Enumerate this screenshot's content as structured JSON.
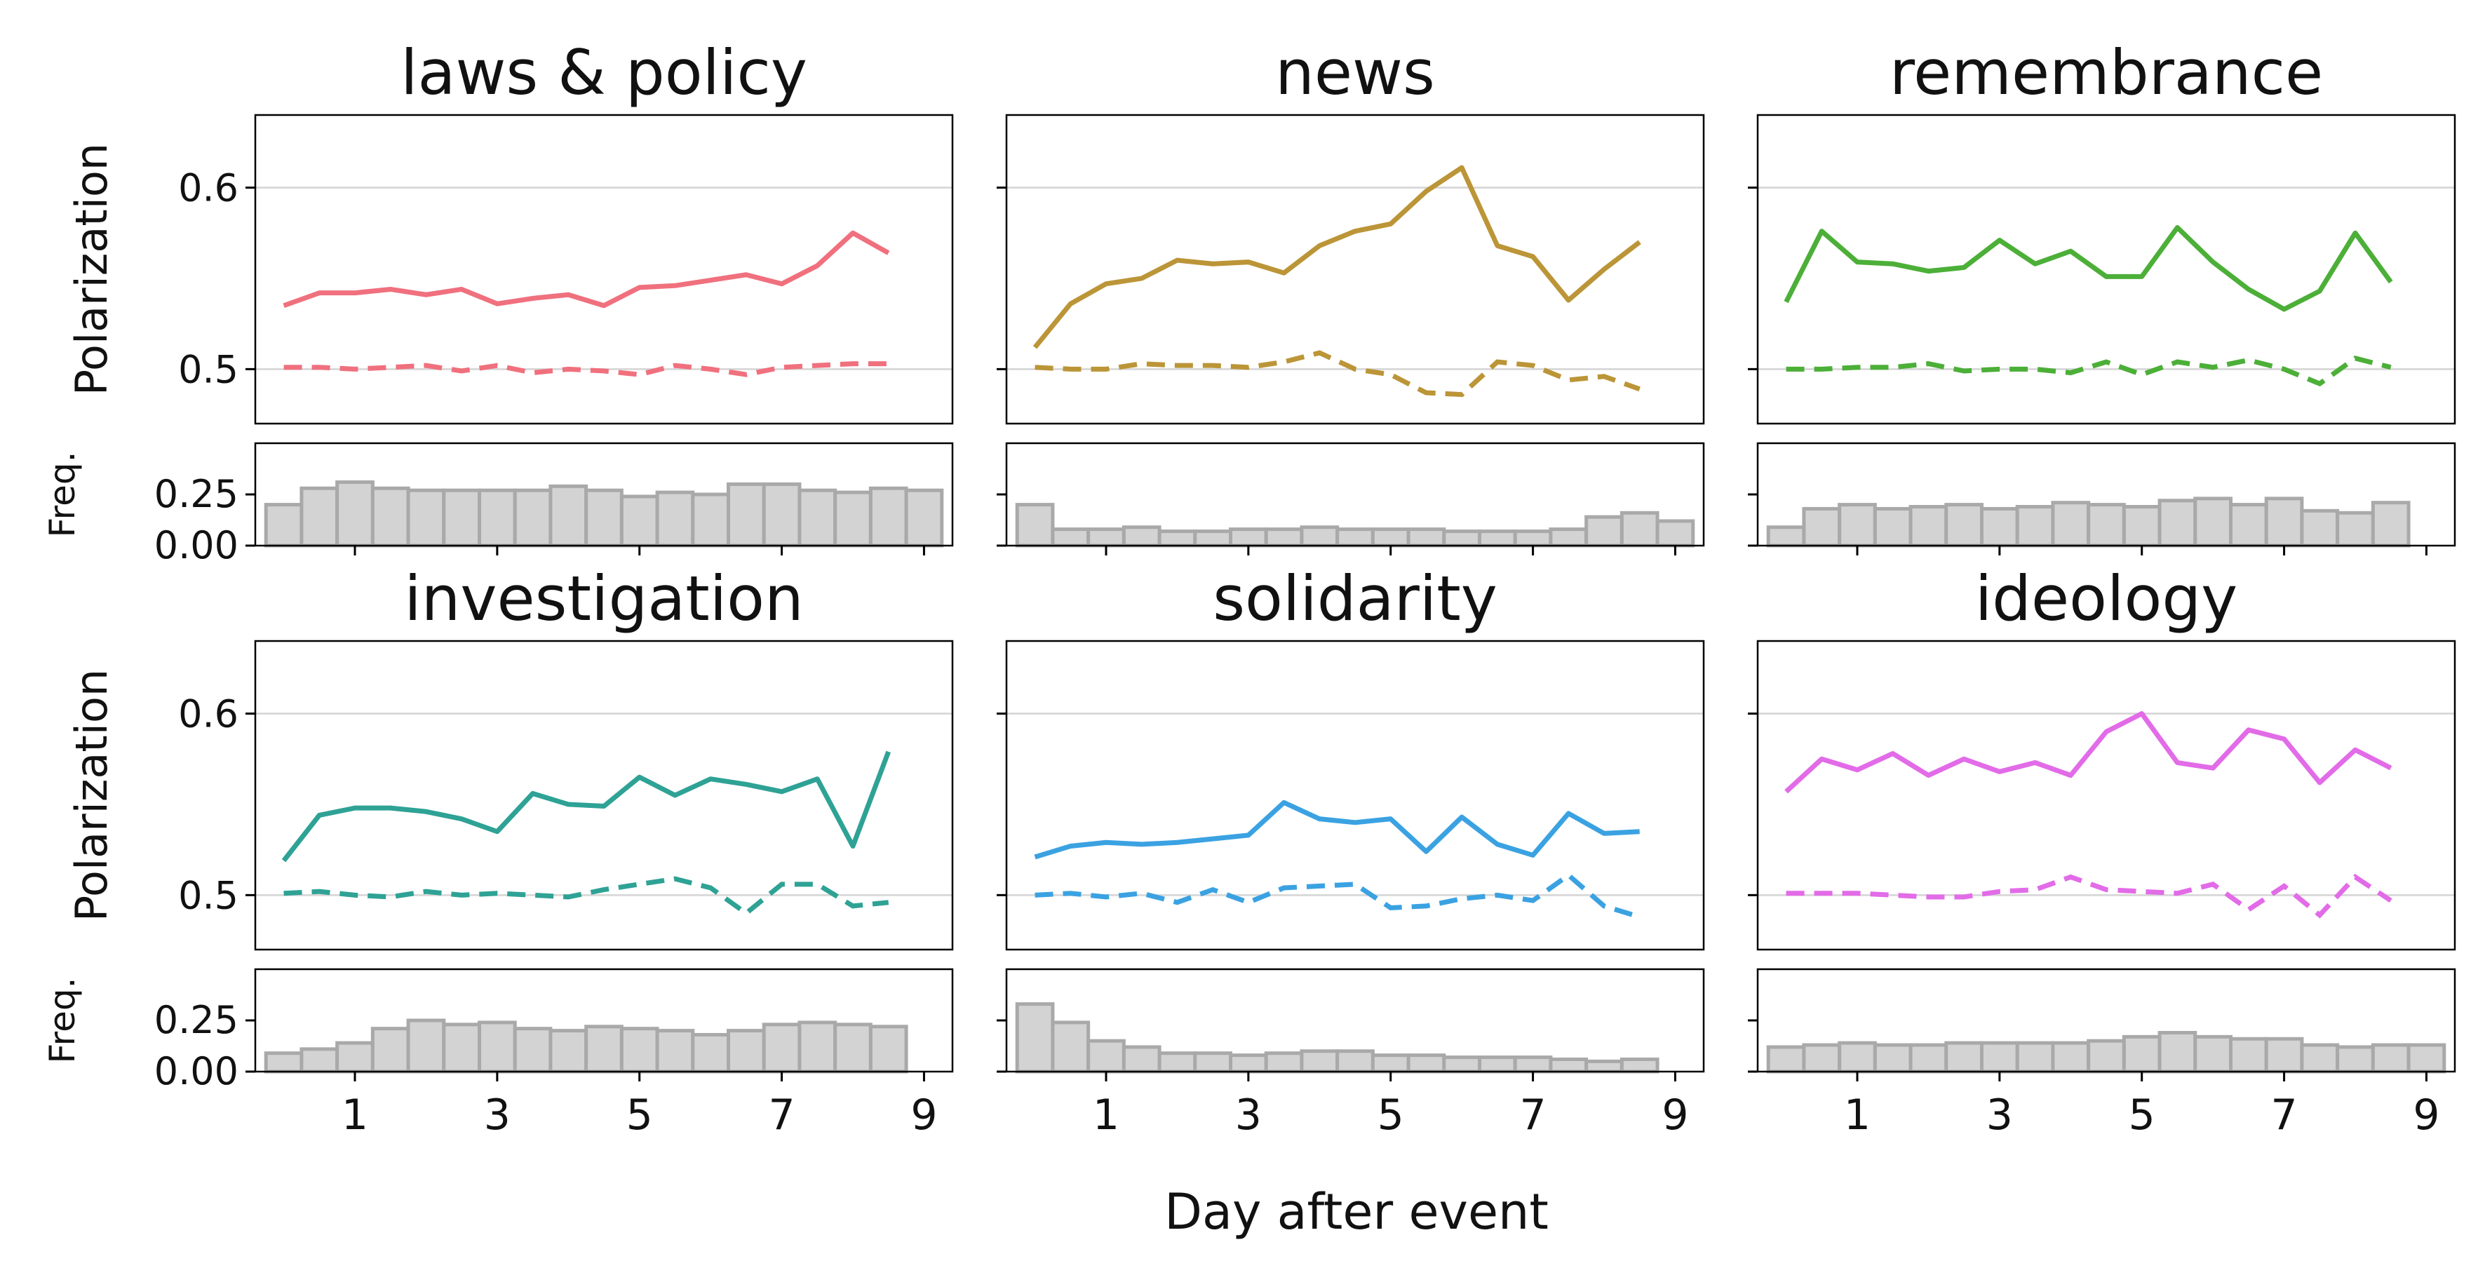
{
  "chart_data": {
    "type": "line",
    "xlabel": "Day after event",
    "ylabel": "Polarization",
    "freq_label": "Freq.",
    "x": [
      0,
      0.5,
      1,
      1.5,
      2,
      2.5,
      3,
      3.5,
      4,
      4.5,
      5,
      5.5,
      6,
      6.5,
      7,
      7.5,
      8,
      8.5,
      9
    ],
    "xticks": [
      1,
      3,
      5,
      7,
      9
    ],
    "ylim": [
      0.47,
      0.64
    ],
    "yticks": [
      0.5,
      0.6
    ],
    "freq_ylim": [
      0,
      0.5
    ],
    "freq_yticks": [
      0.0,
      0.25
    ],
    "panels": [
      {
        "title": "laws & policy",
        "color": "#f0707e",
        "observed": [
          0.535,
          0.542,
          0.542,
          0.544,
          0.541,
          0.544,
          0.536,
          0.539,
          0.541,
          0.535,
          0.545,
          0.546,
          0.549,
          0.552,
          0.547,
          0.557,
          0.575,
          0.564
        ],
        "baseline": [
          0.501,
          0.501,
          0.5,
          0.501,
          0.502,
          0.499,
          0.502,
          0.498,
          0.5,
          0.499,
          0.497,
          0.502,
          0.5,
          0.497,
          0.501,
          0.502,
          0.503,
          0.503
        ],
        "freq": [
          0.2,
          0.28,
          0.31,
          0.28,
          0.27,
          0.27,
          0.27,
          0.27,
          0.29,
          0.27,
          0.24,
          0.26,
          0.25,
          0.3,
          0.3,
          0.27,
          0.26,
          0.28,
          0.27
        ]
      },
      {
        "title": "news",
        "color": "#bb9537",
        "observed": [
          0.512,
          0.536,
          0.547,
          0.55,
          0.56,
          0.558,
          0.559,
          0.553,
          0.568,
          0.576,
          0.58,
          0.598,
          0.611,
          0.568,
          0.562,
          0.538,
          0.555,
          0.57
        ],
        "baseline": [
          0.501,
          0.5,
          0.5,
          0.503,
          0.502,
          0.502,
          0.501,
          0.504,
          0.509,
          0.5,
          0.497,
          0.487,
          0.486,
          0.504,
          0.502,
          0.494,
          0.496,
          0.489
        ],
        "freq": [
          0.2,
          0.08,
          0.08,
          0.09,
          0.07,
          0.07,
          0.08,
          0.08,
          0.09,
          0.08,
          0.08,
          0.08,
          0.07,
          0.07,
          0.07,
          0.08,
          0.14,
          0.16,
          0.12
        ]
      },
      {
        "title": "remembrance",
        "color": "#4caf38",
        "observed": [
          0.537,
          0.576,
          0.559,
          0.558,
          0.554,
          0.556,
          0.571,
          0.558,
          0.565,
          0.551,
          0.551,
          0.578,
          0.559,
          0.544,
          0.533,
          0.543,
          0.575,
          0.548
        ],
        "baseline": [
          0.5,
          0.5,
          0.501,
          0.501,
          0.503,
          0.499,
          0.5,
          0.5,
          0.498,
          0.504,
          0.497,
          0.504,
          0.501,
          0.505,
          0.5,
          0.492,
          0.506,
          0.501
        ],
        "freq": [
          0.09,
          0.18,
          0.2,
          0.18,
          0.19,
          0.2,
          0.18,
          0.19,
          0.21,
          0.2,
          0.19,
          0.22,
          0.23,
          0.2,
          0.23,
          0.17,
          0.16,
          0.21,
          0.0
        ]
      },
      {
        "title": "investigation",
        "color": "#2ea295",
        "observed": [
          0.519,
          0.544,
          0.548,
          0.548,
          0.546,
          0.542,
          0.535,
          0.556,
          0.55,
          0.549,
          0.565,
          0.555,
          0.564,
          0.561,
          0.557,
          0.564,
          0.527,
          0.579
        ],
        "baseline": [
          0.501,
          0.502,
          0.5,
          0.499,
          0.502,
          0.5,
          0.501,
          0.5,
          0.499,
          0.503,
          0.506,
          0.509,
          0.504,
          0.49,
          0.506,
          0.506,
          0.494,
          0.496
        ],
        "freq": [
          0.09,
          0.11,
          0.14,
          0.21,
          0.25,
          0.23,
          0.24,
          0.21,
          0.2,
          0.22,
          0.21,
          0.2,
          0.18,
          0.2,
          0.23,
          0.24,
          0.23,
          0.22,
          0.0
        ]
      },
      {
        "title": "solidarity",
        "color": "#3ba2e2",
        "observed": [
          0.521,
          0.527,
          0.529,
          0.528,
          0.529,
          0.531,
          0.533,
          0.551,
          0.542,
          0.54,
          0.542,
          0.524,
          0.543,
          0.528,
          0.522,
          0.545,
          0.534,
          0.535
        ],
        "baseline": [
          0.5,
          0.501,
          0.499,
          0.501,
          0.496,
          0.503,
          0.496,
          0.504,
          0.505,
          0.506,
          0.493,
          0.494,
          0.498,
          0.5,
          0.497,
          0.511,
          0.494,
          0.488
        ],
        "freq": [
          0.33,
          0.24,
          0.15,
          0.12,
          0.09,
          0.09,
          0.08,
          0.09,
          0.1,
          0.1,
          0.08,
          0.08,
          0.07,
          0.07,
          0.07,
          0.06,
          0.05,
          0.06,
          0.0
        ]
      },
      {
        "title": "ideology",
        "color": "#e26be8",
        "observed": [
          0.557,
          0.575,
          0.569,
          0.578,
          0.566,
          0.575,
          0.568,
          0.573,
          0.566,
          0.59,
          0.6,
          0.573,
          0.57,
          0.591,
          0.586,
          0.562,
          0.58,
          0.57
        ],
        "baseline": [
          0.501,
          0.501,
          0.501,
          0.5,
          0.499,
          0.499,
          0.502,
          0.503,
          0.51,
          0.503,
          0.502,
          0.501,
          0.506,
          0.492,
          0.505,
          0.489,
          0.51,
          0.497
        ],
        "freq": [
          0.12,
          0.13,
          0.14,
          0.13,
          0.13,
          0.14,
          0.14,
          0.14,
          0.14,
          0.15,
          0.17,
          0.19,
          0.17,
          0.16,
          0.16,
          0.13,
          0.12,
          0.13,
          0.13
        ]
      }
    ]
  }
}
